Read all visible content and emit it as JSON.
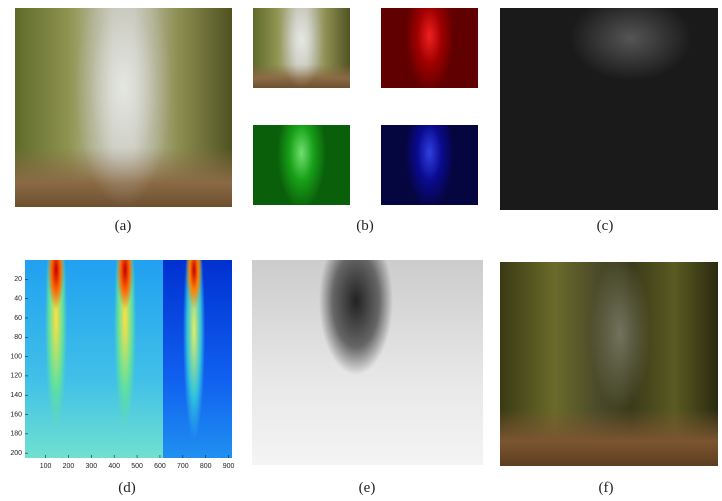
{
  "panels": [
    {
      "label": "(a)"
    },
    {
      "label": "(b)"
    },
    {
      "label": "(c)"
    },
    {
      "label": "(d)"
    },
    {
      "label": "(e)"
    },
    {
      "label": "(f)"
    }
  ],
  "heatmap": {
    "xlim": [
      10,
      915
    ],
    "ylim": [
      0,
      205
    ],
    "xticks": [
      100,
      200,
      300,
      400,
      500,
      600,
      700,
      800,
      900
    ],
    "yticks": [
      20,
      40,
      60,
      80,
      100,
      120,
      140,
      160,
      180,
      200
    ]
  }
}
